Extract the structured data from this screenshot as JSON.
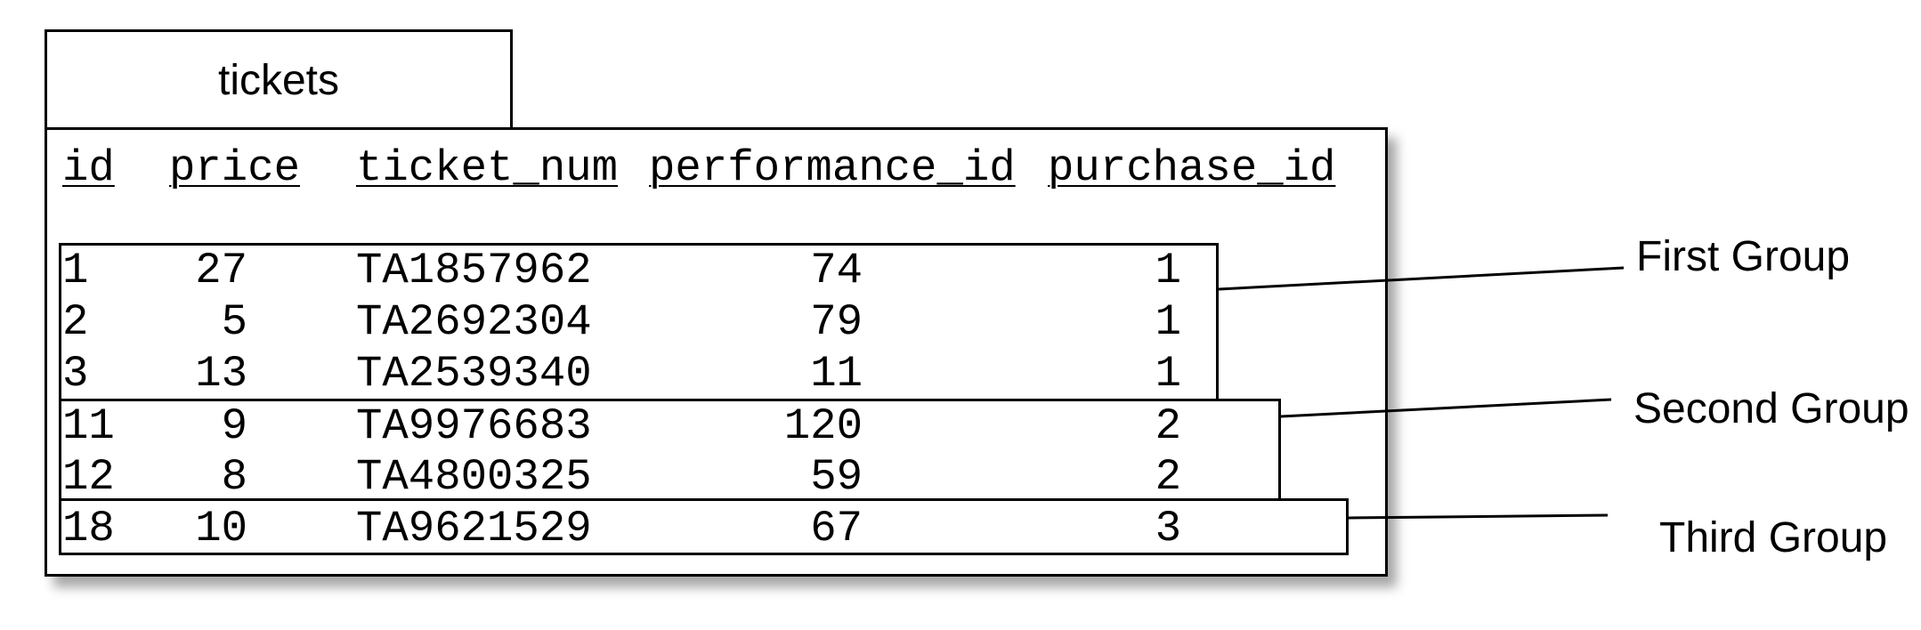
{
  "table": {
    "name": "tickets",
    "columns": [
      "id",
      "price",
      "ticket_num",
      "performance_id",
      "purchase_id"
    ],
    "rows": [
      [
        "1",
        "27",
        "TA1857962",
        "74",
        "1"
      ],
      [
        "2",
        "5",
        "TA2692304",
        "79",
        "1"
      ],
      [
        "3",
        "13",
        "TA2539340",
        "11",
        "1"
      ],
      [
        "11",
        "9",
        "TA9976683",
        "120",
        "2"
      ],
      [
        "12",
        "8",
        "TA4800325",
        "59",
        "2"
      ],
      [
        "18",
        "10",
        "TA9621529",
        "67",
        "3"
      ]
    ]
  },
  "groups": [
    {
      "label": "First Group"
    },
    {
      "label": "Second Group"
    },
    {
      "label": "Third Group"
    }
  ]
}
